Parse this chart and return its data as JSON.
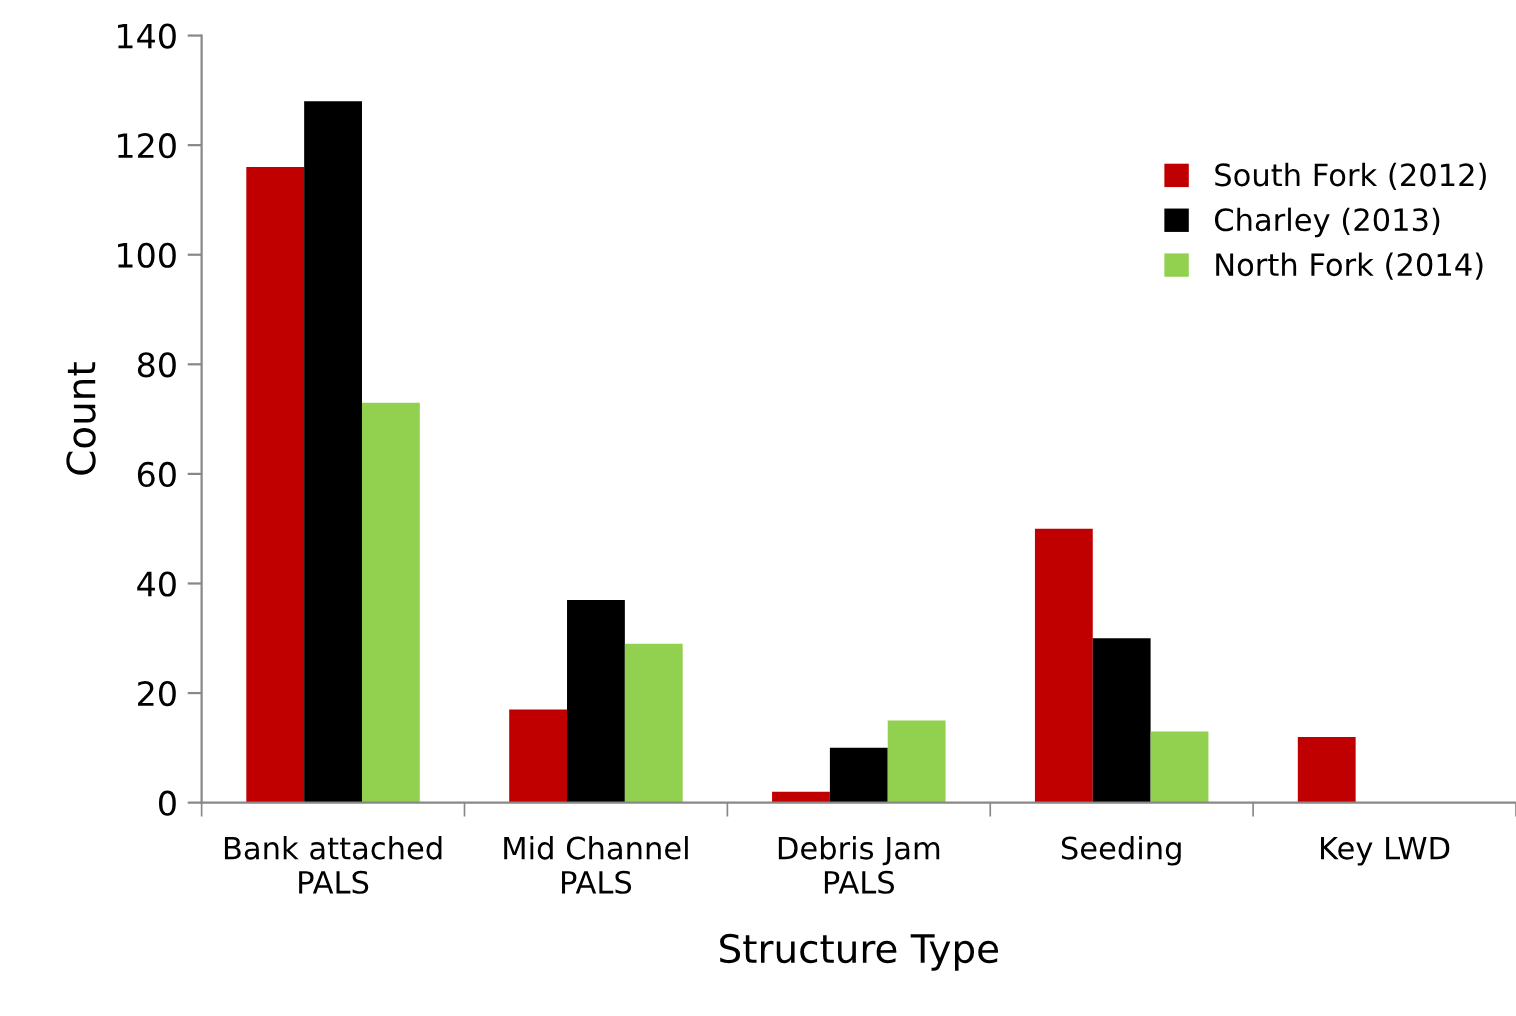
{
  "chart_data": {
    "type": "bar",
    "xlabel": "Structure Type",
    "ylabel": "Count",
    "categories": [
      "Bank attached\nPALS",
      "Mid Channel\nPALS",
      "Debris Jam\nPALS",
      "Seeding",
      "Key LWD"
    ],
    "series": [
      {
        "name": "South Fork (2012)",
        "color": "#c00000",
        "values": [
          116,
          17,
          2,
          50,
          12
        ]
      },
      {
        "name": "Charley (2013)",
        "color": "#000000",
        "values": [
          128,
          37,
          10,
          30,
          null
        ]
      },
      {
        "name": "North Fork (2014)",
        "color": "#92d050",
        "values": [
          73,
          29,
          15,
          13,
          null
        ]
      }
    ],
    "ylim": [
      0,
      140
    ],
    "yticks": [
      0,
      20,
      40,
      60,
      80,
      100,
      120,
      140
    ],
    "grid": false,
    "legend": "top right"
  }
}
